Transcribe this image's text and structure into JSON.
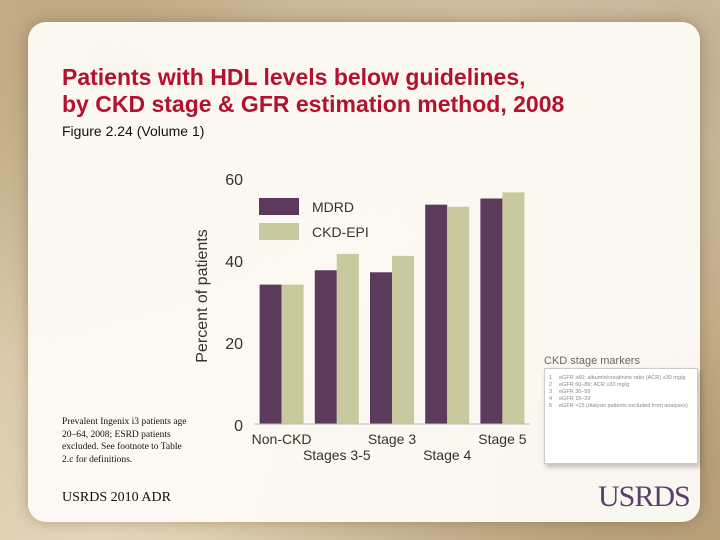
{
  "slide": {
    "title_line1": "Patients with HDL levels below guidelines,",
    "title_line2": "by CKD stage & GFR estimation method, 2008",
    "subtitle": "Figure 2.24 (Volume 1)",
    "footnote": "Prevalent Ingenix i3 patients age 20–64, 2008; ESRD patients excluded. See footnote to Table 2.c for definitions.",
    "source": "USRDS 2010 ADR",
    "logo_text": "USRDS"
  },
  "stage_markers": {
    "title": "CKD stage markers",
    "items": [
      {
        "num": "1",
        "text": "eGFR ≥60; albumin/creatinine ratio (ACR) ≥30 mg/g"
      },
      {
        "num": "2",
        "text": "eGFR 60–89; ACR ≥30 mg/g"
      },
      {
        "num": "3",
        "text": "eGFR 30–59"
      },
      {
        "num": "4",
        "text": "eGFR 15–29"
      },
      {
        "num": "5",
        "text": "eGFR <15 (dialysis patients excluded from analyses)"
      }
    ]
  },
  "chart_data": {
    "type": "bar",
    "categories": [
      "Non-CKD",
      "Stages 3-5",
      "Stage 3",
      "Stage 4",
      "Stage 5"
    ],
    "series": [
      {
        "name": "MDRD",
        "color": "#5b3a5b",
        "values": [
          34,
          37.5,
          37,
          53.5,
          55
        ]
      },
      {
        "name": "CKD-EPI",
        "color": "#c9c9a0",
        "values": [
          34,
          41.5,
          41,
          53,
          56.5
        ]
      }
    ],
    "ylabel": "Percent of patients",
    "ylim": [
      0,
      60
    ],
    "yticks": [
      0,
      20,
      40,
      60
    ],
    "grid": false,
    "legend_position": "top-left"
  }
}
